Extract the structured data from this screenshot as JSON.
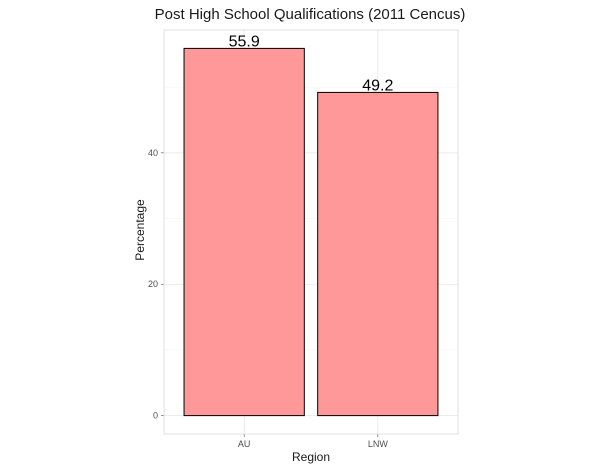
{
  "chart_data": {
    "type": "bar",
    "title": "Post High School Qualifications (2011 Cencus)",
    "xlabel": "Region",
    "ylabel": "Percentage",
    "categories": [
      "AU",
      "LNW"
    ],
    "values": [
      55.9,
      49.2
    ],
    "data_labels": [
      "55.9",
      "49.2"
    ],
    "yticks": [
      0,
      20,
      40
    ],
    "ytick_labels": [
      "0",
      "20",
      "40"
    ],
    "ylim": [
      -2.8,
      58.7
    ],
    "grid": true,
    "legend": "none",
    "bar_fill": "#ff9999",
    "bar_stroke": "#000000"
  }
}
